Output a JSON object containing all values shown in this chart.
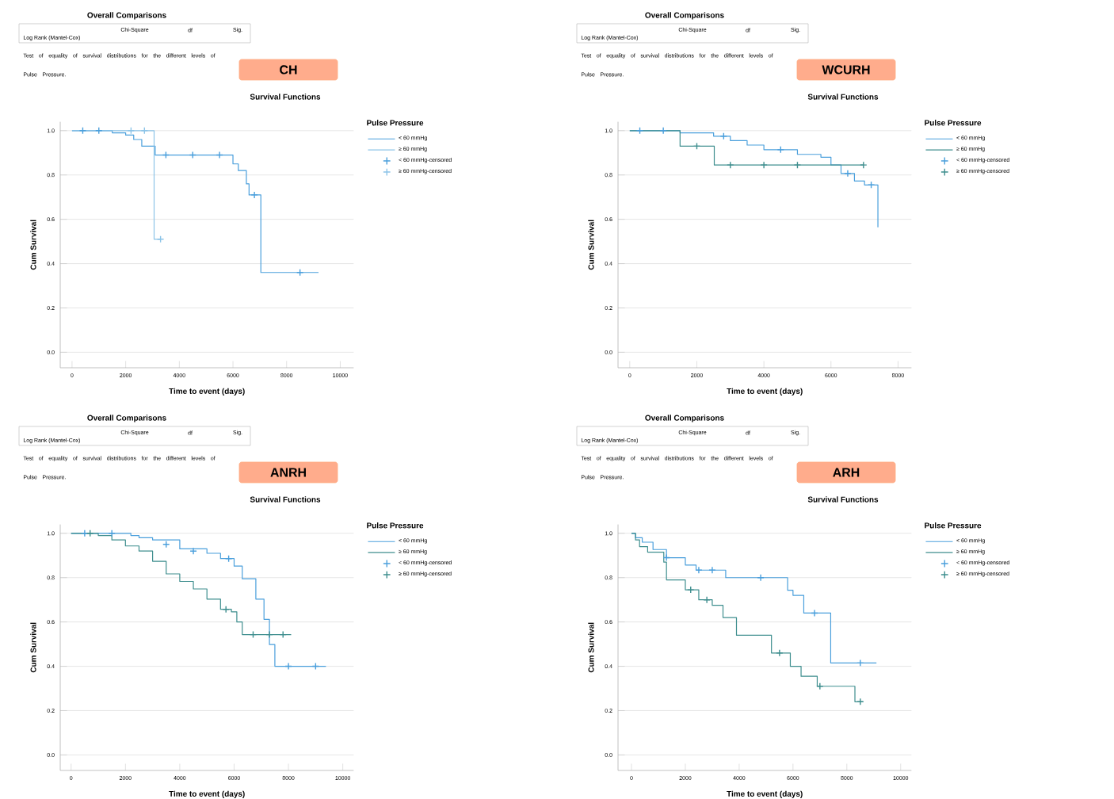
{
  "chart_data": [
    {
      "type": "step",
      "title": "CH",
      "subtitle": "Survival Functions",
      "xlabel": "Time to event (days)",
      "ylabel": "Cum Survival",
      "legend_title": "Pulse Pressure",
      "legend": "right",
      "grid": "y",
      "annotations": [
        "Overall Comparisons",
        "Chi-Square",
        "df",
        "Sig.",
        "Log Rank (Mantel-Cox)",
        "Test of equality of survival distributions for the different levels of Pulse Pressure."
      ],
      "xlim": [
        -440,
        10500
      ],
      "ylim": [
        -0.07,
        1.04
      ],
      "xticks": [
        0,
        2000,
        4000,
        6000,
        8000,
        10000
      ],
      "yticks": [
        {
          "value": 0,
          "label": "0.0"
        },
        {
          "value": 0.2,
          "label": "0.2"
        },
        {
          "value": 0.4,
          "label": "0.4"
        },
        {
          "value": 0.6,
          "label": "0.6"
        },
        {
          "value": 0.8,
          "label": "0.8"
        },
        {
          "value": 1,
          "label": "1.0"
        }
      ],
      "series": [
        {
          "name": "< 60 mmHg",
          "color": "#4a9fdc",
          "x": [
            0,
            1500,
            2000,
            2300,
            2600,
            3100,
            6000,
            6200,
            6500,
            6600,
            7040,
            9190
          ],
          "values": [
            1.0,
            0.99,
            0.98,
            0.96,
            0.93,
            0.89,
            0.85,
            0.82,
            0.76,
            0.71,
            0.36,
            0.36
          ]
        },
        {
          "name": "≥ 60 mmHg",
          "color": "#8cc4e8",
          "x": [
            0,
            3060,
            3300
          ],
          "values": [
            1.0,
            0.51,
            0.51
          ]
        },
        {
          "name": "< 60 mmHg-censored",
          "type": "scatter",
          "marker": "cross",
          "color": "#4a9fdc",
          "x": [
            400,
            1000,
            3500,
            4500,
            5500,
            6800,
            8500
          ],
          "values": [
            1.0,
            1.0,
            0.89,
            0.89,
            0.89,
            0.71,
            0.36
          ]
        },
        {
          "name": "≥ 60 mmHg-censored",
          "type": "scatter",
          "marker": "cross",
          "color": "#8cc4e8",
          "x": [
            2200,
            2700,
            3300
          ],
          "values": [
            1.0,
            1.0,
            0.51
          ]
        }
      ]
    },
    {
      "type": "step",
      "title": "WCURH",
      "subtitle": "Survival Functions",
      "xlabel": "Time to event (days)",
      "ylabel": "Cum Survival",
      "legend_title": "Pulse Pressure",
      "legend": "right",
      "grid": "y",
      "annotations": [
        "Overall Comparisons",
        "Chi-Square",
        "df",
        "Sig.",
        "Log Rank (Mantel-Cox)",
        "Test of equality of survival distributions for the different levels of Pulse Pressure."
      ],
      "xlim": [
        -350,
        8400
      ],
      "ylim": [
        -0.07,
        1.04
      ],
      "xticks": [
        0,
        2000,
        4000,
        6000,
        8000
      ],
      "yticks": [
        {
          "value": 0,
          "label": "0.0"
        },
        {
          "value": 0.2,
          "label": "0.2"
        },
        {
          "value": 0.4,
          "label": "0.4"
        },
        {
          "value": 0.6,
          "label": "0.6"
        },
        {
          "value": 0.8,
          "label": "0.8"
        },
        {
          "value": 1,
          "label": "1.0"
        }
      ],
      "series": [
        {
          "name": "< 60 mmHg",
          "color": "#4a9fdc",
          "x": [
            0,
            1500,
            2500,
            3000,
            3500,
            4000,
            5000,
            5700,
            6000,
            6300,
            6700,
            7000,
            7400
          ],
          "values": [
            1.0,
            0.99,
            0.975,
            0.955,
            0.935,
            0.914,
            0.893,
            0.88,
            0.845,
            0.807,
            0.773,
            0.755,
            0.564
          ]
        },
        {
          "name": "≥ 60 mmHg",
          "color": "#3e8e8e",
          "x": [
            0,
            1500,
            2520,
            6970
          ],
          "values": [
            1.0,
            0.93,
            0.845,
            0.845
          ]
        },
        {
          "name": "< 60 mmHg-censored",
          "type": "scatter",
          "marker": "cross",
          "color": "#4a9fdc",
          "x": [
            300,
            1000,
            2800,
            4500,
            6500,
            7200
          ],
          "values": [
            1.0,
            1.0,
            0.975,
            0.914,
            0.807,
            0.755
          ]
        },
        {
          "name": "≥ 60 mmHg-censored",
          "type": "scatter",
          "marker": "cross",
          "color": "#3e8e8e",
          "x": [
            2000,
            3000,
            4000,
            5000,
            6970
          ],
          "values": [
            0.93,
            0.845,
            0.845,
            0.845,
            0.845
          ]
        }
      ]
    },
    {
      "type": "step",
      "title": "ANRH",
      "subtitle": "Survival Functions",
      "xlabel": "Time to event (days)",
      "ylabel": "Cum Survival",
      "legend_title": "Pulse Pressure",
      "legend": "right",
      "grid": "y",
      "annotations": [
        "Overall Comparisons",
        "Chi-Square",
        "df",
        "Sig.",
        "Log Rank (Mantel-Cox)",
        "Test of equality of survival distributions for the different levels of Pulse Pressure."
      ],
      "xlim": [
        -400,
        10400
      ],
      "ylim": [
        -0.07,
        1.04
      ],
      "xticks": [
        0,
        2000,
        4000,
        6000,
        8000,
        10000
      ],
      "yticks": [
        {
          "value": 0,
          "label": "0.0"
        },
        {
          "value": 0.2,
          "label": "0.2"
        },
        {
          "value": 0.4,
          "label": "0.4"
        },
        {
          "value": 0.6,
          "label": "0.6"
        },
        {
          "value": 0.8,
          "label": "0.8"
        },
        {
          "value": 1,
          "label": "1.0"
        }
      ],
      "series": [
        {
          "name": "< 60 mmHg",
          "color": "#4a9fdc",
          "x": [
            0,
            2200,
            2500,
            3000,
            4000,
            5000,
            5500,
            6000,
            6300,
            6800,
            7100,
            7300,
            7500,
            9380
          ],
          "values": [
            1.0,
            0.99,
            0.98,
            0.97,
            0.93,
            0.91,
            0.886,
            0.852,
            0.795,
            0.703,
            0.612,
            0.498,
            0.4,
            0.4
          ]
        },
        {
          "name": "≥ 60 mmHg",
          "color": "#3e8e8e",
          "x": [
            0,
            1000,
            1500,
            2000,
            2500,
            3000,
            3500,
            4000,
            4500,
            5000,
            5500,
            5900,
            6100,
            6300,
            8100
          ],
          "values": [
            1.0,
            0.99,
            0.97,
            0.943,
            0.92,
            0.874,
            0.817,
            0.783,
            0.749,
            0.703,
            0.657,
            0.646,
            0.6,
            0.543,
            0.543
          ]
        },
        {
          "name": "< 60 mmHg-censored",
          "type": "scatter",
          "marker": "cross",
          "color": "#4a9fdc",
          "x": [
            500,
            1500,
            3500,
            4500,
            5800,
            8000,
            9000
          ],
          "values": [
            1.0,
            1.0,
            0.95,
            0.92,
            0.886,
            0.4,
            0.4
          ]
        },
        {
          "name": "≥ 60 mmHg-censored",
          "type": "scatter",
          "marker": "cross",
          "color": "#3e8e8e",
          "x": [
            700,
            5700,
            6700,
            7300,
            7800
          ],
          "values": [
            1.0,
            0.657,
            0.543,
            0.543,
            0.543
          ]
        }
      ]
    },
    {
      "type": "step",
      "title": "ARH",
      "subtitle": "Survival Functions",
      "xlabel": "Time to event (days)",
      "ylabel": "Cum Survival",
      "legend_title": "Pulse Pressure",
      "legend": "right",
      "grid": "y",
      "annotations": [
        "Overall Comparisons",
        "Chi-Square",
        "df",
        "Sig.",
        "Log Rank (Mantel-Cox)",
        "Test of equality of survival distributions for the different levels of Pulse Pressure."
      ],
      "xlim": [
        -500,
        10400
      ],
      "ylim": [
        -0.07,
        1.04
      ],
      "xticks": [
        0,
        2000,
        4000,
        6000,
        8000,
        10000
      ],
      "yticks": [
        {
          "value": 0,
          "label": "0.0"
        },
        {
          "value": 0.2,
          "label": "0.2"
        },
        {
          "value": 0.4,
          "label": "0.4"
        },
        {
          "value": 0.6,
          "label": "0.6"
        },
        {
          "value": 0.8,
          "label": "0.8"
        },
        {
          "value": 1,
          "label": "1.0"
        }
      ],
      "series": [
        {
          "name": "< 60 mmHg",
          "color": "#4a9fdc",
          "x": [
            0,
            150,
            400,
            800,
            1300,
            2000,
            2400,
            3500,
            5800,
            6000,
            6400,
            7400,
            9100
          ],
          "values": [
            1.0,
            0.98,
            0.96,
            0.927,
            0.89,
            0.857,
            0.834,
            0.8,
            0.743,
            0.72,
            0.64,
            0.415,
            0.415
          ]
        },
        {
          "name": "≥ 60 mmHg",
          "color": "#3e8e8e",
          "x": [
            0,
            150,
            300,
            600,
            1200,
            1300,
            2000,
            2500,
            3000,
            3400,
            3900,
            5200,
            5900,
            6300,
            6900,
            8300,
            8600
          ],
          "values": [
            1.0,
            0.97,
            0.94,
            0.915,
            0.87,
            0.79,
            0.745,
            0.7,
            0.675,
            0.62,
            0.54,
            0.46,
            0.4,
            0.355,
            0.31,
            0.24,
            0.24
          ]
        },
        {
          "name": "< 60 mmHg-censored",
          "type": "scatter",
          "marker": "cross",
          "color": "#4a9fdc",
          "x": [
            1300,
            2500,
            3000,
            4800,
            6800,
            8500
          ],
          "values": [
            0.89,
            0.834,
            0.834,
            0.8,
            0.64,
            0.415
          ]
        },
        {
          "name": "≥ 60 mmHg-censored",
          "type": "scatter",
          "marker": "cross",
          "color": "#3e8e8e",
          "x": [
            2200,
            2800,
            5500,
            7000,
            8500
          ],
          "values": [
            0.745,
            0.7,
            0.46,
            0.31,
            0.24
          ]
        }
      ]
    }
  ]
}
